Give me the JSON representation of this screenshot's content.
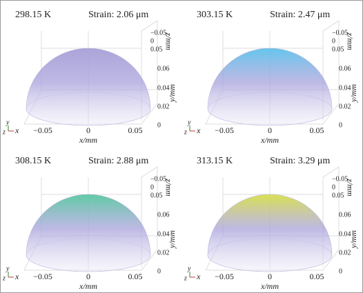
{
  "panels": [
    {
      "temperature": "298.15 K",
      "strain": "Strain: 2.06 μm",
      "top_color": "#a79fd6"
    },
    {
      "temperature": "303.15 K",
      "strain": "Strain: 2.47 μm",
      "top_color": "#5cc3ec"
    },
    {
      "temperature": "308.15 K",
      "strain": "Strain: 2.88 μm",
      "top_color": "#58c8a0"
    },
    {
      "temperature": "313.15 K",
      "strain": "Strain: 3.29 μm",
      "top_color": "#d8df4a"
    }
  ],
  "axes": {
    "x_label": "x/mm",
    "y_label": "y/mm",
    "z_label": "z/mm",
    "x_ticks": [
      "−0.05",
      "0",
      "0.05"
    ],
    "z_ticks": [
      "−0.05",
      "0",
      "0.05"
    ],
    "y_ticks": [
      "0.06",
      "0.04",
      "0.02",
      "0"
    ],
    "triad": [
      "y",
      "z",
      "x"
    ]
  }
}
